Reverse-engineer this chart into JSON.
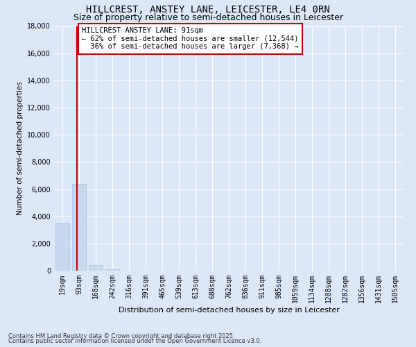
{
  "title": "HILLCREST, ANSTEY LANE, LEICESTER, LE4 0RN",
  "subtitle": "Size of property relative to semi-detached houses in Leicester",
  "xlabel": "Distribution of semi-detached houses by size in Leicester",
  "ylabel": "Number of semi-detached properties",
  "categories": [
    "19sqm",
    "93sqm",
    "168sqm",
    "242sqm",
    "316sqm",
    "391sqm",
    "465sqm",
    "539sqm",
    "613sqm",
    "688sqm",
    "762sqm",
    "836sqm",
    "911sqm",
    "985sqm",
    "1059sqm",
    "1134sqm",
    "1208sqm",
    "1282sqm",
    "1356sqm",
    "1431sqm",
    "1505sqm"
  ],
  "values": [
    3500,
    6400,
    400,
    100,
    0,
    0,
    0,
    0,
    0,
    0,
    0,
    0,
    0,
    0,
    0,
    0,
    0,
    0,
    0,
    0,
    0
  ],
  "bar_color": "#c8d8ee",
  "bar_edge_color": "#a8c0dc",
  "vline_x": 0.88,
  "vline_color": "#cc0000",
  "annotation_text": "HILLCREST ANSTEY LANE: 91sqm\n← 62% of semi-detached houses are smaller (12,544)\n  36% of semi-detached houses are larger (7,368) →",
  "annotation_box_color": "#ffffff",
  "annotation_box_edge": "#cc0000",
  "ylim": [
    0,
    18000
  ],
  "yticks": [
    0,
    2000,
    4000,
    6000,
    8000,
    10000,
    12000,
    14000,
    16000,
    18000
  ],
  "bg_color": "#dce8f8",
  "plot_bg_color": "#dce8f8",
  "grid_color": "#ffffff",
  "title_fontsize": 10,
  "subtitle_fontsize": 9,
  "footer1": "Contains HM Land Registry data © Crown copyright and database right 2025.",
  "footer2": "Contains public sector information licensed under the Open Government Licence v3.0."
}
